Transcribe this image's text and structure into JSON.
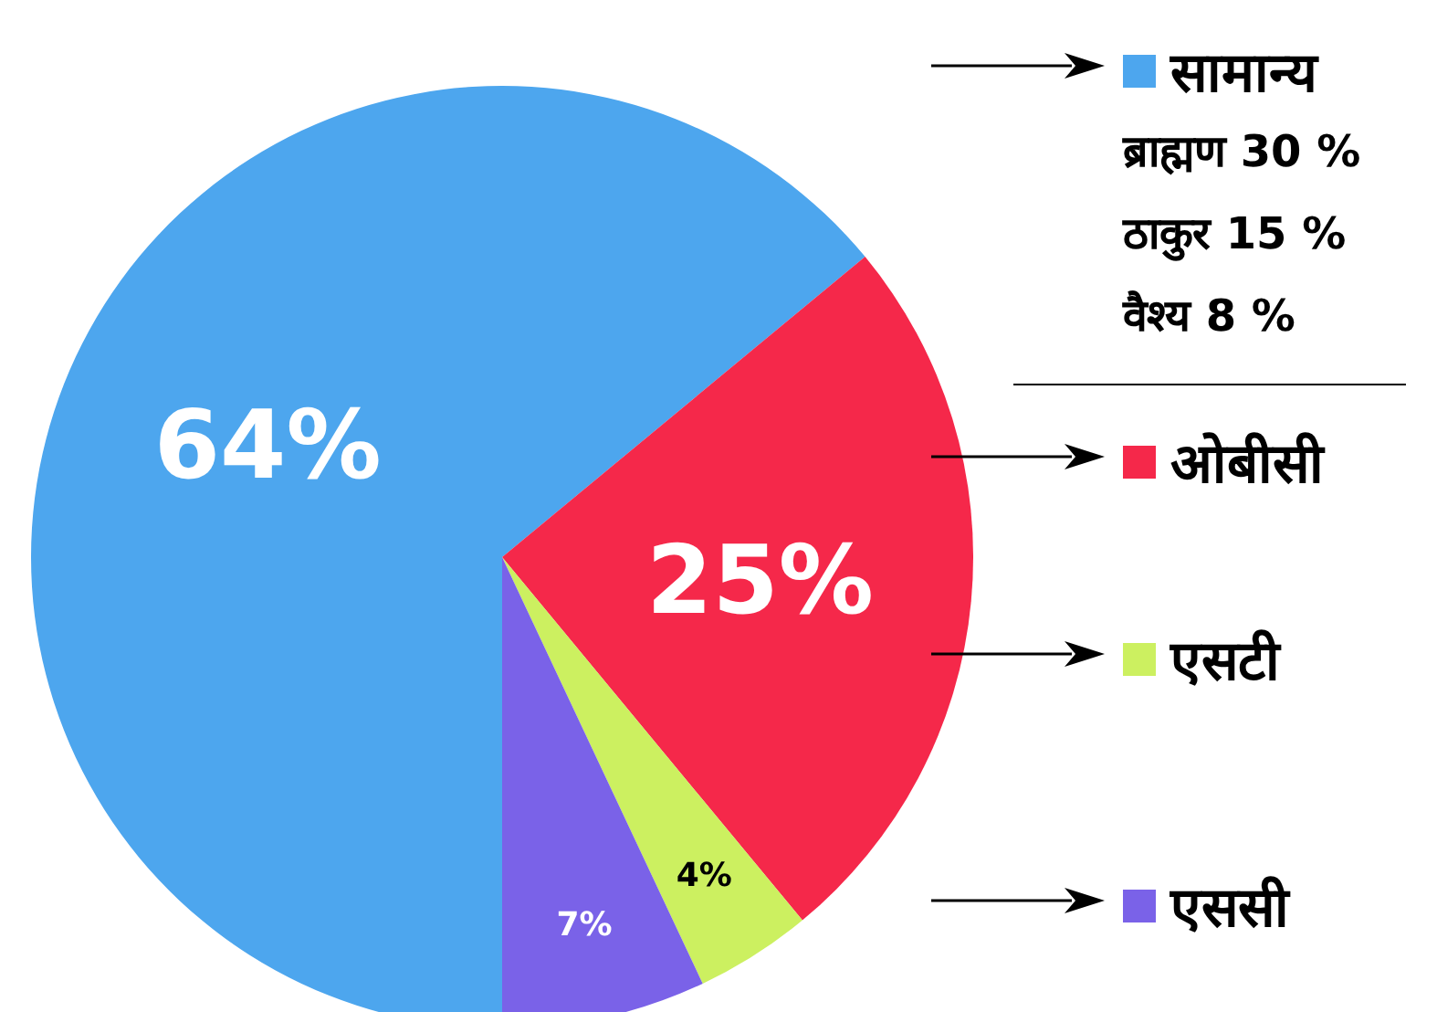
{
  "chart_data": {
    "type": "pie",
    "categories": [
      "सामान्य",
      "ओबीसी",
      "एसटी",
      "एससी"
    ],
    "values": [
      64,
      25,
      4,
      7
    ],
    "colors": [
      "#4da6ee",
      "#f5284a",
      "#ccf060",
      "#7a62e8"
    ],
    "value_labels": [
      "64%",
      "25%",
      "4%",
      "7%"
    ],
    "annotations": [
      "ब्राह्मण 30 %",
      "ठाकुर 15 %",
      "वैश्य 8 %"
    ],
    "legend": "right"
  }
}
